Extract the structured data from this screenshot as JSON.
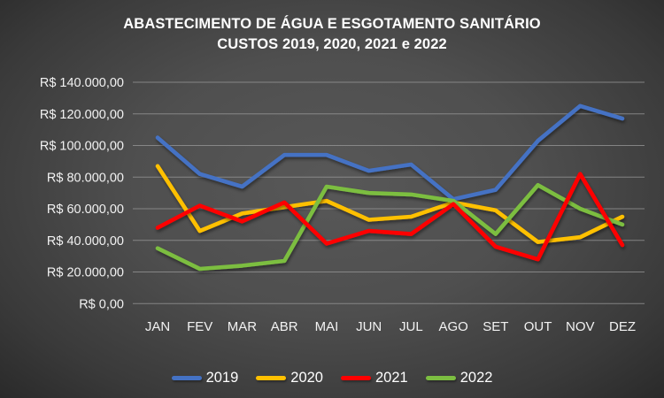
{
  "title": {
    "line1": "ABASTECIMENTO DE ÁGUA E ESGOTAMENTO SANITÁRIO",
    "line2": "CUSTOS 2019, 2020, 2021 e 2022"
  },
  "chart_data": {
    "type": "line",
    "title": "ABASTECIMENTO DE ÁGUA E ESGOTAMENTO SANITÁRIO CUSTOS 2019, 2020, 2021 e 2022",
    "categories": [
      "JAN",
      "FEV",
      "MAR",
      "ABR",
      "MAI",
      "JUN",
      "JUL",
      "AGO",
      "SET",
      "OUT",
      "NOV",
      "DEZ"
    ],
    "series": [
      {
        "name": "2019",
        "color": "#4472C4",
        "values": [
          105000,
          82000,
          74000,
          94000,
          94000,
          84000,
          88000,
          66000,
          72000,
          103000,
          125000,
          117000
        ]
      },
      {
        "name": "2020",
        "color": "#FFC000",
        "values": [
          87000,
          46000,
          57000,
          61000,
          65000,
          53000,
          55000,
          64000,
          59000,
          39000,
          42000,
          55000
        ]
      },
      {
        "name": "2021",
        "color": "#FF0000",
        "values": [
          48000,
          62000,
          52000,
          64000,
          38000,
          46000,
          44000,
          63000,
          36000,
          28000,
          82000,
          37000
        ]
      },
      {
        "name": "2022",
        "color": "#7CBE41",
        "values": [
          35000,
          22000,
          24000,
          27000,
          74000,
          70000,
          69000,
          65000,
          44000,
          75000,
          60000,
          50000
        ]
      }
    ],
    "draw_order": [
      0,
      1,
      3,
      2
    ],
    "ylim": [
      0,
      140000
    ],
    "y_ticks": [
      {
        "value": 140000,
        "label": "R$ 140.000,00"
      },
      {
        "value": 120000,
        "label": "R$ 120.000,00"
      },
      {
        "value": 100000,
        "label": "R$ 100.000,00"
      },
      {
        "value": 80000,
        "label": "R$ 80.000,00"
      },
      {
        "value": 60000,
        "label": "R$ 60.000,00"
      },
      {
        "value": 40000,
        "label": "R$ 40.000,00"
      },
      {
        "value": 20000,
        "label": "R$ 20.000,00"
      },
      {
        "value": 0,
        "label": "R$ 0,00"
      }
    ],
    "grid": true,
    "grid_color": "#999999",
    "axis_text_color": "#f2f2f2",
    "legend_position": "bottom",
    "xlabel": "",
    "ylabel": ""
  }
}
